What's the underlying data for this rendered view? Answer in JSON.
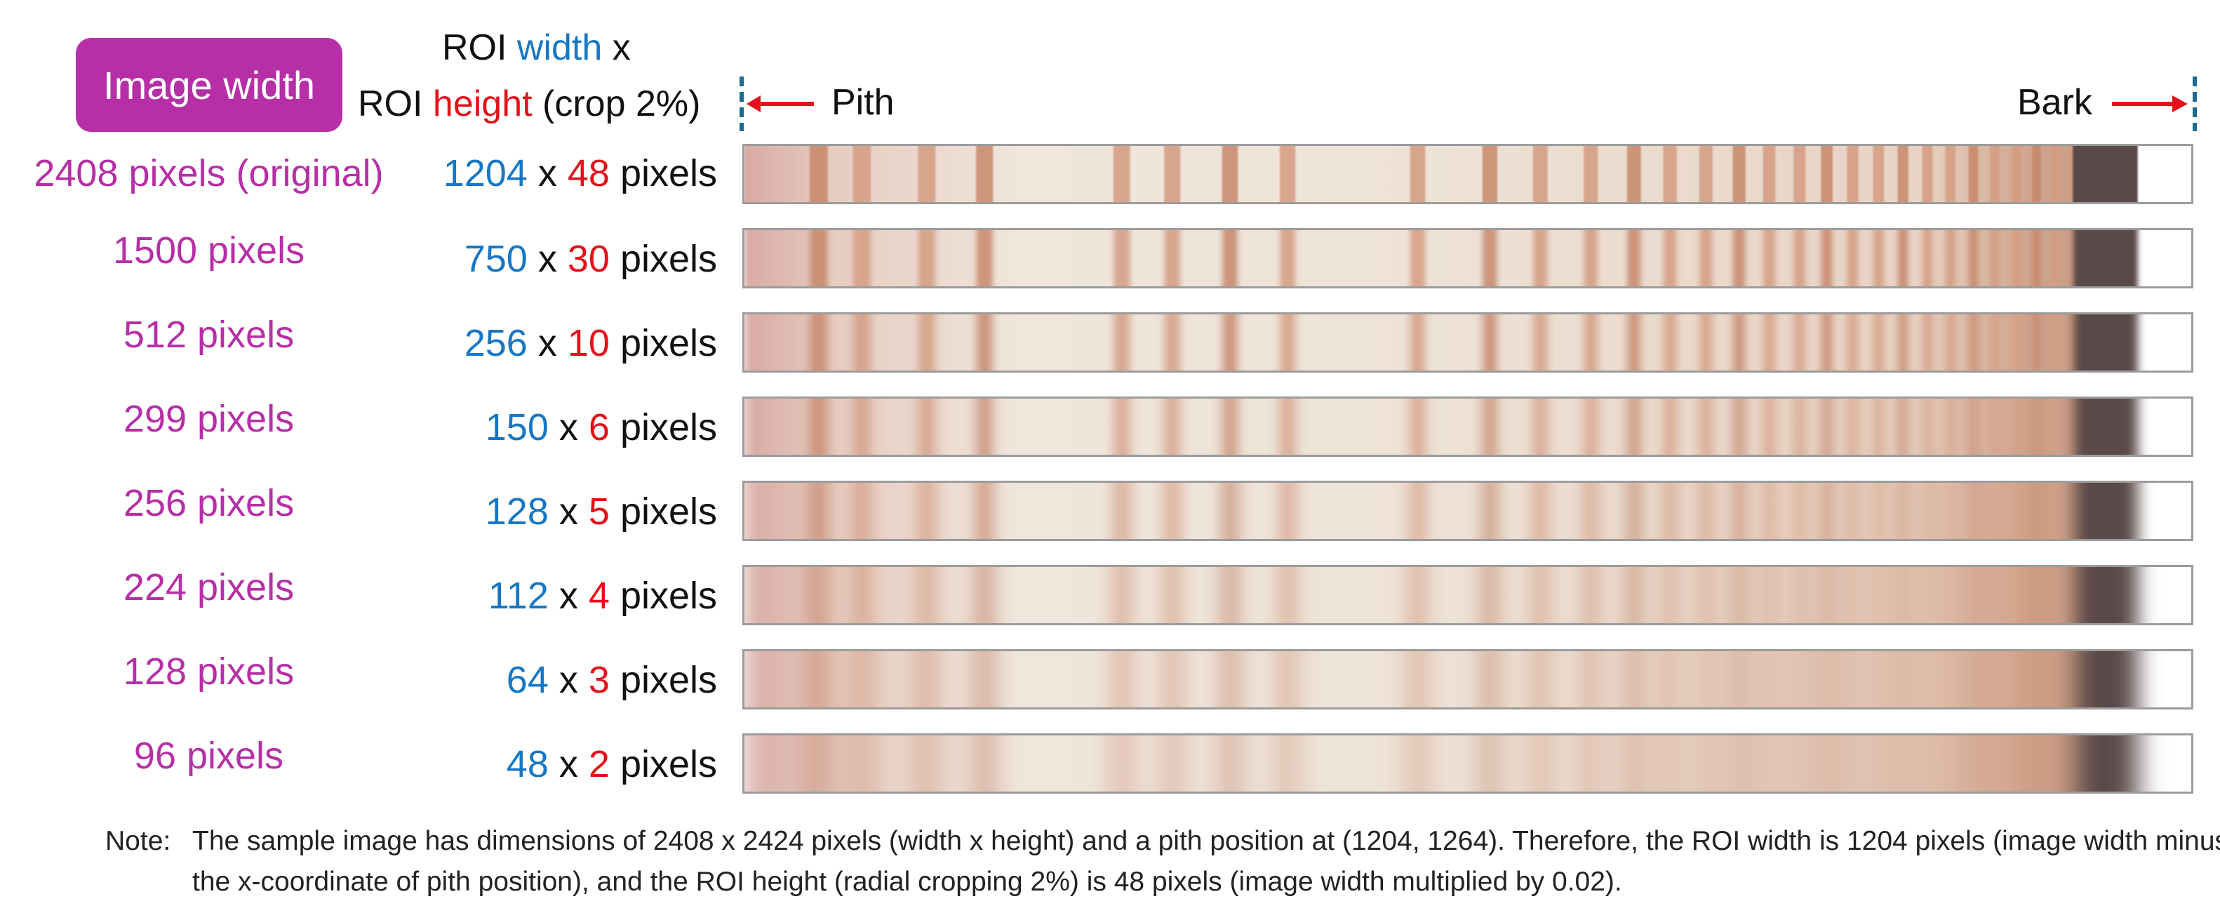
{
  "header": {
    "badge": "Image width",
    "roi_line1_a": "ROI ",
    "roi_line1_b": "width",
    "roi_line1_c": " x",
    "roi_line2_a": "ROI ",
    "roi_line2_b": "height",
    "roi_line2_c": " (crop 2%)",
    "pith": "Pith",
    "bark": "Bark"
  },
  "rows": [
    {
      "image_width": "2408 pixels (original)",
      "roi_w": "1204",
      "x": " x ",
      "roi_h": "48",
      "unit": " pixels"
    },
    {
      "image_width": "1500 pixels",
      "roi_w": "750",
      "x": " x ",
      "roi_h": "30",
      "unit": " pixels"
    },
    {
      "image_width": "512 pixels",
      "roi_w": "256",
      "x": " x ",
      "roi_h": "10",
      "unit": " pixels"
    },
    {
      "image_width": "299 pixels",
      "roi_w": "150",
      "x": " x ",
      "roi_h": "6",
      "unit": " pixels"
    },
    {
      "image_width": "256 pixels",
      "roi_w": "128",
      "x": " x ",
      "roi_h": "5",
      "unit": " pixels"
    },
    {
      "image_width": "224 pixels",
      "roi_w": "112",
      "x": " x ",
      "roi_h": "4",
      "unit": " pixels"
    },
    {
      "image_width": "128 pixels",
      "roi_w": "64",
      "x": " x ",
      "roi_h": "3",
      "unit": " pixels"
    },
    {
      "image_width": "96 pixels",
      "roi_w": "48",
      "x": " x ",
      "roi_h": "2",
      "unit": " pixels"
    }
  ],
  "note": {
    "label": "Note:",
    "text": "The sample image has dimensions of 2408 x 2424 pixels (width x height) and a pith position at (1204, 1264). Therefore, the ROI width is 1204 pixels (image width minus the x-coordinate of pith position), and the ROI height (radial cropping 2%) is 48 pixels (image width multiplied by 0.02)."
  },
  "colors": {
    "image_width": "#b62fa6",
    "roi_width": "#1777c4",
    "roi_height": "#e3111b",
    "arrow": "#e3111b",
    "marker": "#1b6b8e"
  }
}
